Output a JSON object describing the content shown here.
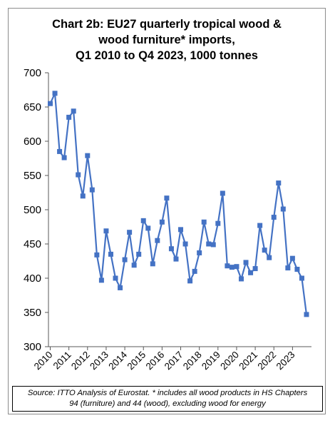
{
  "chart_data": {
    "type": "line",
    "title_lines": [
      "Chart 2b: EU27 quarterly tropical wood &",
      "wood furniture* imports,",
      "Q1 2010 to Q4 2023, 1000 tonnes"
    ],
    "source_lines": [
      "Source: ITTO Analysis of Eurostat. * includes all wood products in HS Chapters",
      "94 (furniture) and 44 (wood), excluding wood for energy"
    ],
    "ylim": [
      300,
      700
    ],
    "yticks": [
      "300",
      "350",
      "400",
      "450",
      "500",
      "550",
      "600",
      "650",
      "700"
    ],
    "ytick_values": [
      300,
      350,
      400,
      450,
      500,
      550,
      600,
      650,
      700
    ],
    "xtick_labels": [
      "2010",
      "2011",
      "2012",
      "2013",
      "2014",
      "2015",
      "2016",
      "2017",
      "2018",
      "2019",
      "2020",
      "2021",
      "2022",
      "2023"
    ],
    "grid": false,
    "series_color": "#4472C4",
    "marker": "square",
    "values": [
      655,
      670,
      585,
      576,
      635,
      644,
      551,
      520,
      579,
      529,
      434,
      397,
      469,
      435,
      400,
      386,
      427,
      467,
      419,
      435,
      484,
      473,
      421,
      455,
      482,
      517,
      443,
      428,
      471,
      450,
      396,
      410,
      437,
      482,
      450,
      449,
      480,
      524,
      418,
      416,
      417,
      399,
      423,
      408,
      414,
      477,
      441,
      430,
      489,
      539,
      501,
      415,
      429,
      413,
      400,
      347
    ]
  }
}
